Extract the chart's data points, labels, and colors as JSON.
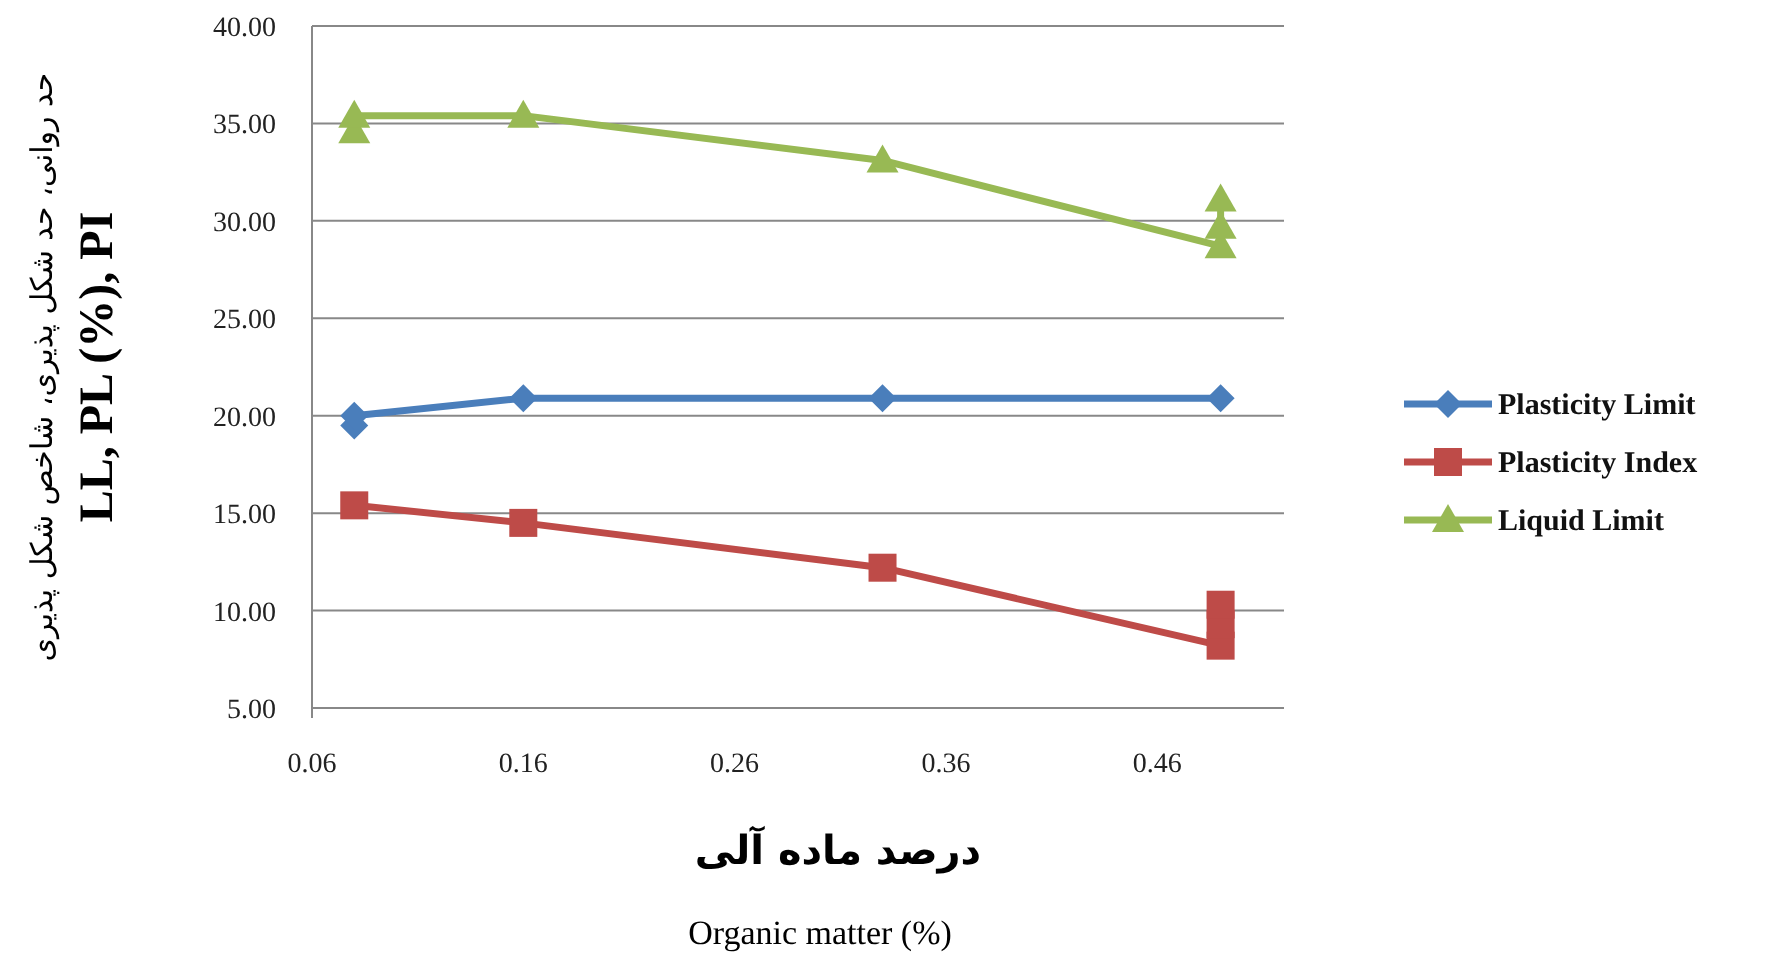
{
  "chart_data": {
    "type": "line",
    "xlabel": "درصد ماده آلی",
    "ylabel": "حد روانی، حد شکل پذیری، شاخص شکل پذیری\n**LL, PL (%), PI**",
    "annotations": [
      "Organic matter  (%)"
    ],
    "xlim": [
      0.06,
      0.52
    ],
    "xticks": [
      0.06,
      0.16,
      0.26,
      0.36,
      0.46
    ],
    "ylim": [
      5,
      40
    ],
    "yticks": [
      {
        "value": 5,
        "label": "5.00"
      },
      {
        "value": 10,
        "label": "10.00"
      },
      {
        "value": 15,
        "label": "15.00"
      },
      {
        "value": 20,
        "label": "20.00"
      },
      {
        "value": 25,
        "label": "25.00"
      },
      {
        "value": 30,
        "label": "30.00"
      },
      {
        "value": 35,
        "label": "35.00"
      },
      {
        "value": 40,
        "label": "40.00"
      }
    ],
    "grid": "y",
    "legend": "right",
    "series": [
      {
        "name": "Plasticity Limit",
        "color": "#4a7ebb",
        "marker": "diamond",
        "x": [
          0.08,
          0.08,
          0.16,
          0.33,
          0.49
        ],
        "values": [
          19.5,
          20.0,
          20.9,
          20.9,
          20.9
        ]
      },
      {
        "name": "Plasticity Index",
        "color": "#be4b48",
        "marker": "square",
        "x": [
          0.08,
          0.16,
          0.33,
          0.49,
          0.49,
          0.49
        ],
        "values": [
          15.4,
          14.5,
          12.2,
          8.2,
          9.3,
          10.3
        ]
      },
      {
        "name": "Liquid Limit",
        "color": "#98b954",
        "marker": "triangle",
        "x": [
          0.08,
          0.08,
          0.16,
          0.33,
          0.49,
          0.49,
          0.49
        ],
        "values": [
          34.6,
          35.4,
          35.4,
          33.1,
          28.7,
          29.7,
          31.1
        ]
      }
    ]
  }
}
